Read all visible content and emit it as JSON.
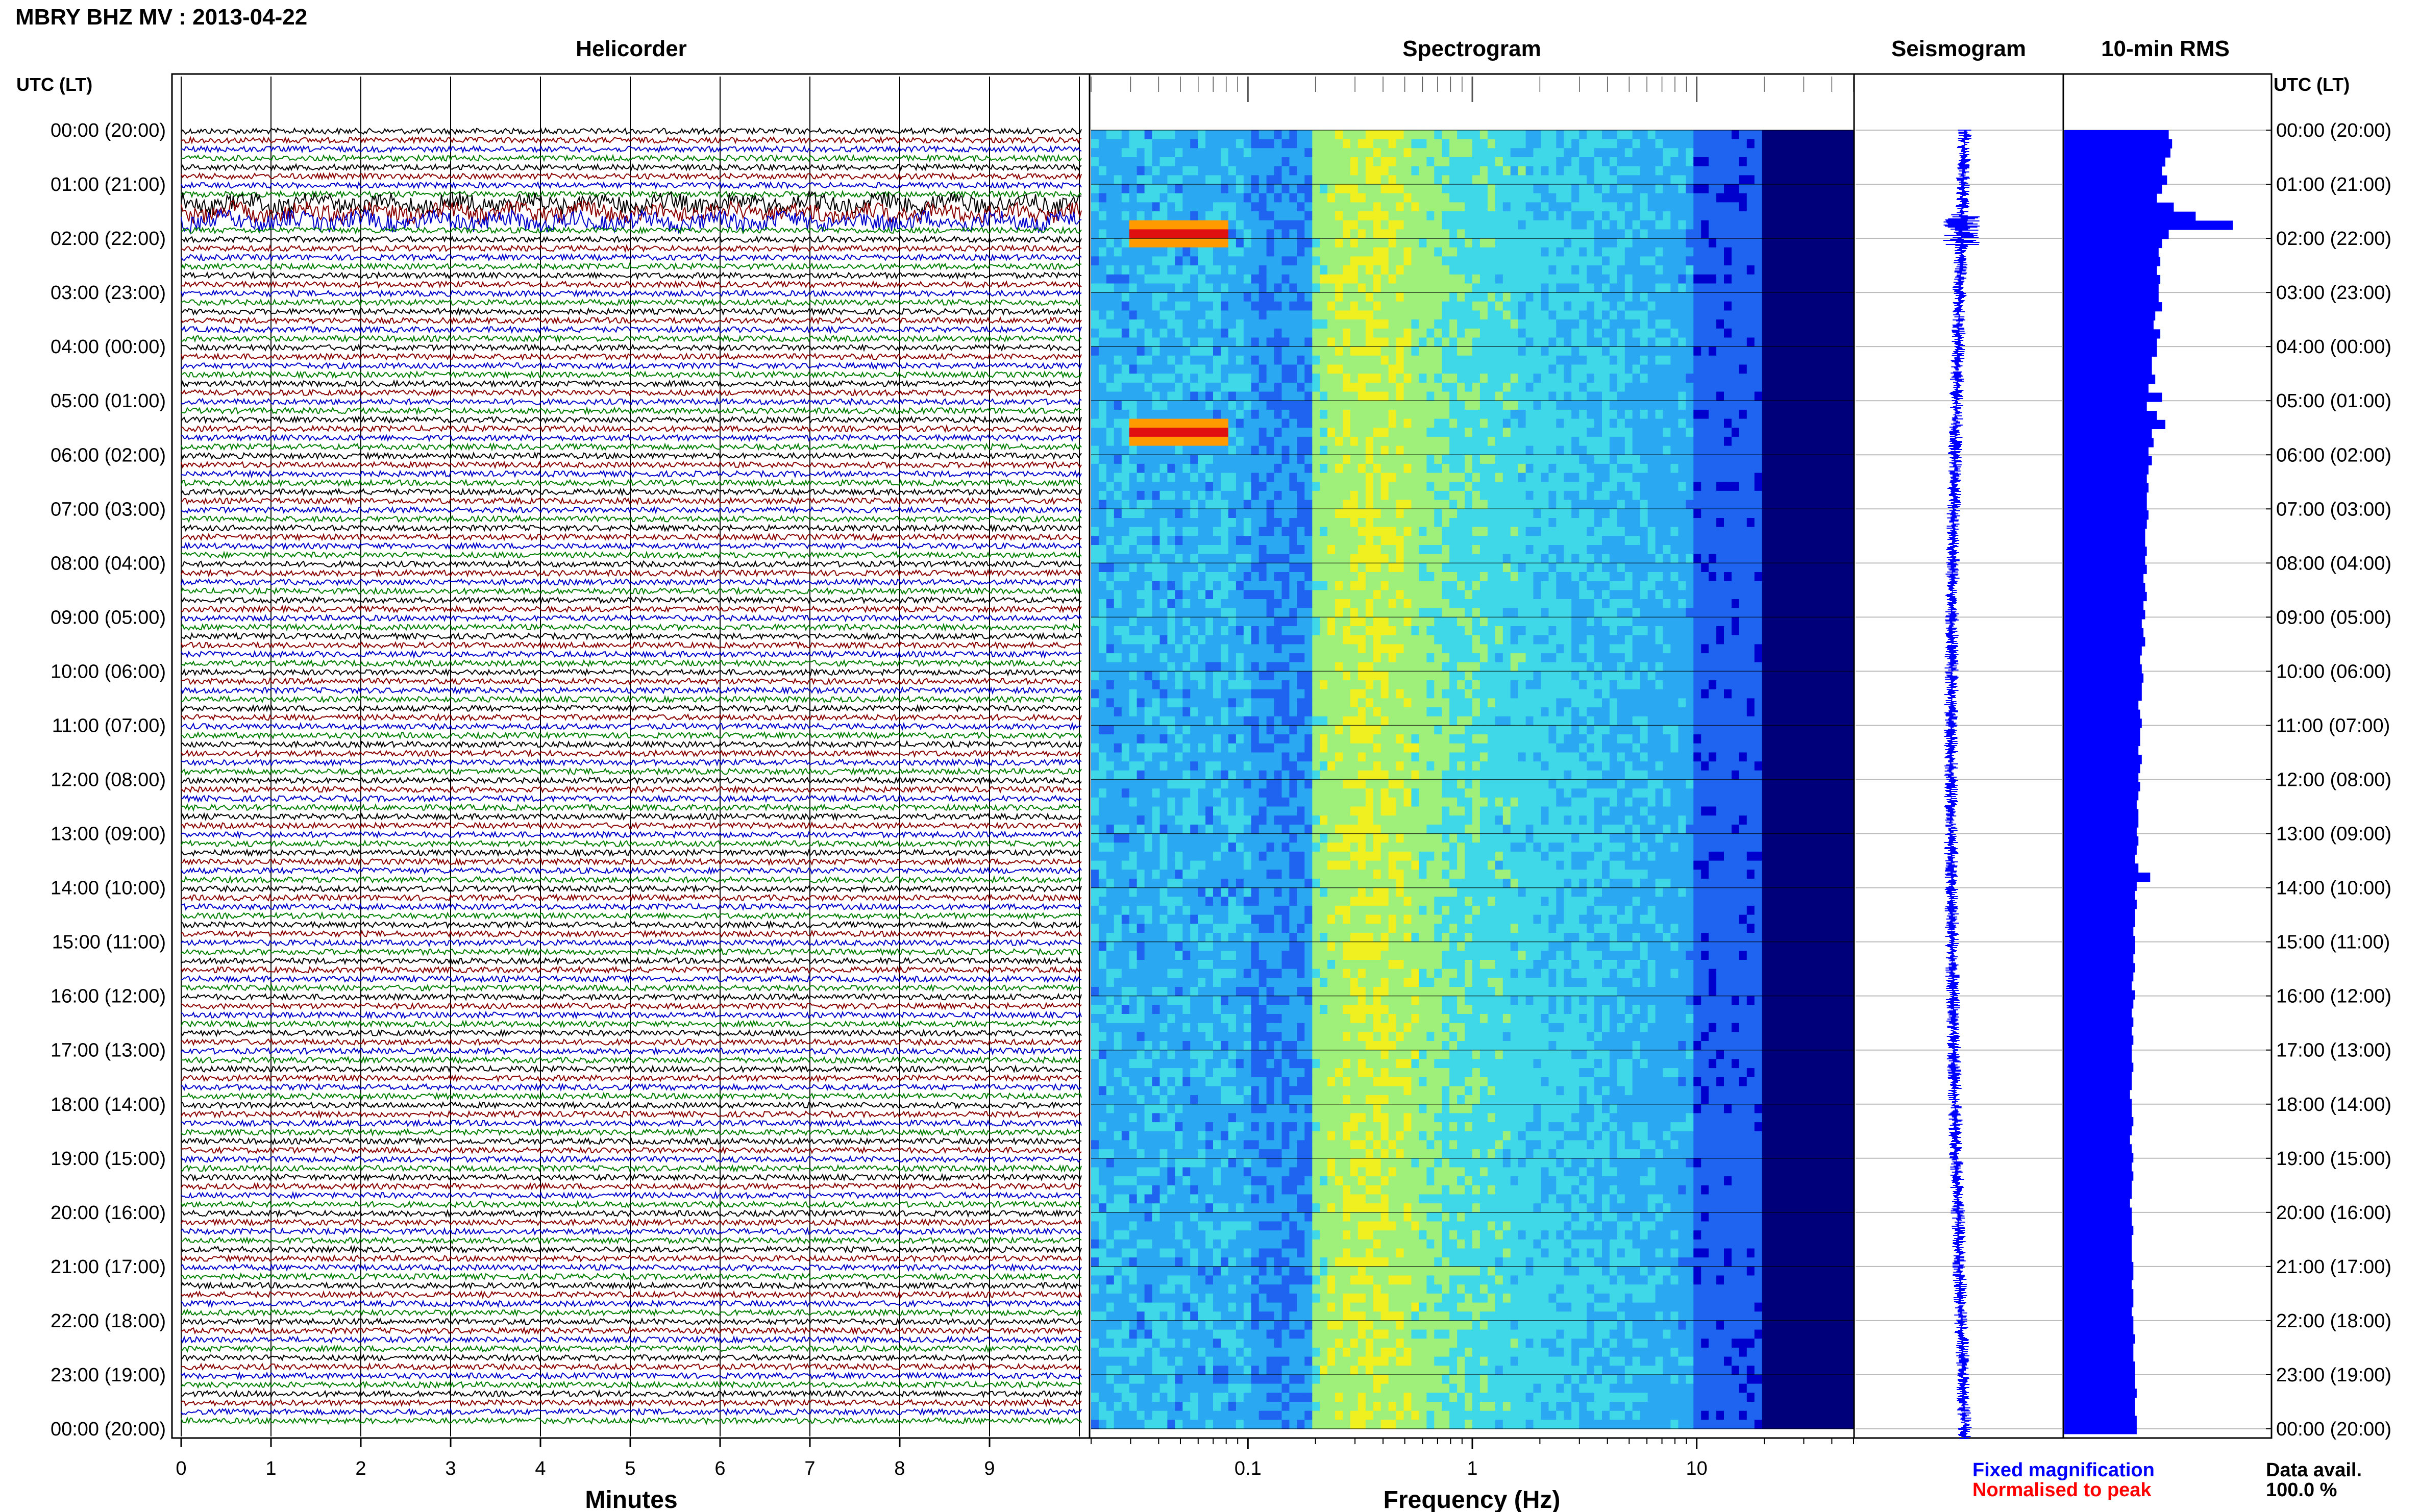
{
  "page_title": "MBRY BHZ MV : 2013-04-22",
  "utc_header_left": "UTC (LT)",
  "utc_header_right": "UTC (LT)",
  "hour_labels": [
    "00:00 (20:00)",
    "01:00 (21:00)",
    "02:00 (22:00)",
    "03:00 (23:00)",
    "04:00 (00:00)",
    "05:00 (01:00)",
    "06:00 (02:00)",
    "07:00 (03:00)",
    "08:00 (04:00)",
    "09:00 (05:00)",
    "10:00 (06:00)",
    "11:00 (07:00)",
    "12:00 (08:00)",
    "13:00 (09:00)",
    "14:00 (10:00)",
    "15:00 (11:00)",
    "16:00 (12:00)",
    "17:00 (13:00)",
    "18:00 (14:00)",
    "19:00 (15:00)",
    "20:00 (16:00)",
    "21:00 (17:00)",
    "22:00 (18:00)",
    "23:00 (19:00)",
    "00:00 (20:00)"
  ],
  "legend": {
    "fixed": "Fixed magnification",
    "normalised": "Normalised to peak",
    "fixed_color": "#0000ff",
    "normalised_color": "#ff0000"
  },
  "data_avail": {
    "label": "Data avail.",
    "value": "100.0 %"
  },
  "trace_colors": [
    "#000000",
    "#8b0000",
    "#0000cd",
    "#008000"
  ],
  "spectrogram_colors": [
    "#00007a",
    "#0000cc",
    "#1e64f0",
    "#2aa8f2",
    "#3ed8e8",
    "#9ff07a",
    "#f0f020",
    "#ff9a00",
    "#e01010"
  ],
  "chart_data": [
    {
      "type": "line",
      "title": "Helicorder",
      "xlabel": "Minutes",
      "xlim": [
        0,
        10
      ],
      "xticks": [
        "0",
        "1",
        "2",
        "3",
        "4",
        "5",
        "6",
        "7",
        "8",
        "9"
      ],
      "rows_per_hour": 6,
      "hours": 24,
      "rows_with_large_amplitude": [
        8,
        9,
        10
      ],
      "grid": true
    },
    {
      "type": "heatmap",
      "title": "Spectrogram",
      "xlabel": "Frequency (Hz)",
      "xscale": "log",
      "xlim": [
        0.02,
        50
      ],
      "xticks": [
        "0.1",
        "1",
        "10"
      ],
      "peak_band_hz": [
        0.2,
        0.7
      ],
      "hot_spots": [
        {
          "time_utc": "01:50",
          "freq_hz": [
            0.03,
            0.08
          ]
        },
        {
          "time_utc": "05:30",
          "freq_hz": [
            0.03,
            0.08
          ]
        }
      ]
    },
    {
      "type": "line",
      "title": "Seismogram"
    },
    {
      "type": "bar",
      "title": "10-min RMS",
      "orientation": "horizontal",
      "bin_minutes": 10,
      "relative_values": [
        0.62,
        0.64,
        0.63,
        0.6,
        0.58,
        0.61,
        0.58,
        0.55,
        0.65,
        0.78,
        1.0,
        0.62,
        0.58,
        0.56,
        0.57,
        0.55,
        0.57,
        0.56,
        0.56,
        0.58,
        0.54,
        0.53,
        0.57,
        0.55,
        0.55,
        0.52,
        0.52,
        0.54,
        0.5,
        0.58,
        0.49,
        0.55,
        0.6,
        0.52,
        0.53,
        0.5,
        0.52,
        0.5,
        0.49,
        0.5,
        0.49,
        0.49,
        0.5,
        0.49,
        0.48,
        0.48,
        0.49,
        0.48,
        0.49,
        0.47,
        0.48,
        0.49,
        0.47,
        0.48,
        0.46,
        0.47,
        0.48,
        0.46,
        0.45,
        0.46,
        0.47,
        0.46,
        0.46,
        0.44,
        0.45,
        0.46,
        0.45,
        0.45,
        0.44,
        0.46,
        0.45,
        0.44,
        0.45,
        0.44,
        0.43,
        0.44,
        0.44,
        0.43,
        0.44,
        0.43,
        0.42,
        0.44,
        0.51,
        0.43,
        0.42,
        0.43,
        0.42,
        0.42,
        0.41,
        0.42,
        0.42,
        0.41,
        0.42,
        0.41,
        0.4,
        0.42,
        0.41,
        0.4,
        0.41,
        0.4,
        0.41,
        0.4,
        0.4,
        0.41,
        0.4,
        0.4,
        0.39,
        0.4,
        0.4,
        0.41,
        0.4,
        0.39,
        0.4,
        0.41,
        0.4,
        0.41,
        0.4,
        0.4,
        0.39,
        0.4,
        0.4,
        0.41,
        0.4,
        0.4,
        0.4,
        0.41,
        0.41,
        0.4,
        0.41,
        0.41,
        0.4,
        0.41,
        0.41,
        0.42,
        0.41,
        0.41,
        0.42,
        0.42,
        0.42,
        0.43,
        0.42,
        0.42,
        0.43,
        0.43
      ]
    }
  ]
}
